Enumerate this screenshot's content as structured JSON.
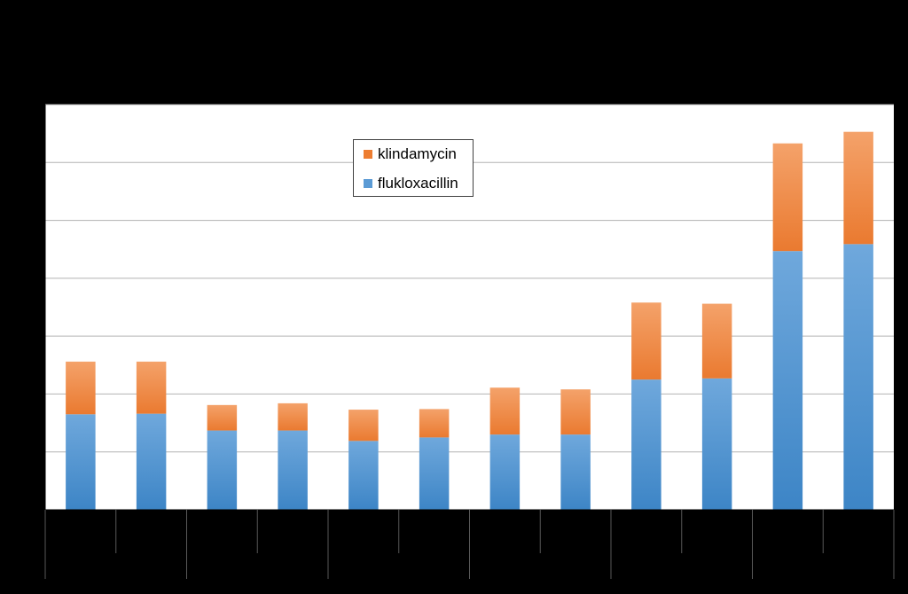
{
  "chart_data": {
    "type": "bar",
    "stacked": true,
    "title": "",
    "xlabel": "",
    "ylabel": "",
    "categories": [
      "",
      "",
      "",
      "",
      "",
      "",
      "",
      "",
      "",
      "",
      "",
      ""
    ],
    "ylim": [
      0,
      7
    ],
    "gridlines": [
      1,
      2,
      3,
      4,
      5,
      6,
      7
    ],
    "grid": true,
    "legend": "top-center",
    "series": [
      {
        "name": "flukloxacillin",
        "color": "#5b9bd5",
        "values": [
          1.65,
          1.66,
          1.37,
          1.37,
          1.19,
          1.25,
          1.3,
          1.3,
          2.25,
          2.27,
          4.47,
          4.59
        ]
      },
      {
        "name": "klindamycin",
        "color": "#ed7d31",
        "values": [
          0.91,
          0.9,
          0.44,
          0.47,
          0.54,
          0.49,
          0.81,
          0.78,
          1.33,
          1.29,
          1.86,
          1.94
        ]
      }
    ]
  },
  "legend": {
    "items": [
      {
        "label": "klindamycin",
        "color": "#ed7d31"
      },
      {
        "label": "flukloxacillin",
        "color": "#5b9bd5"
      }
    ]
  }
}
